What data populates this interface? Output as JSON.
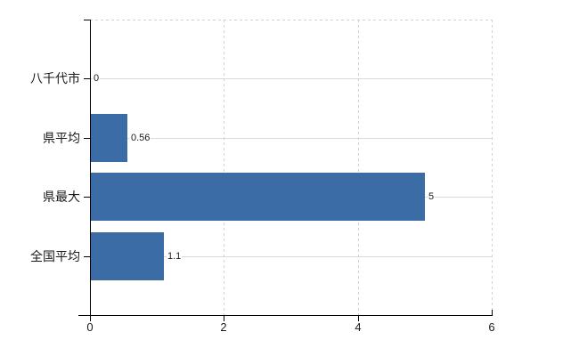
{
  "chart_data": {
    "type": "bar",
    "orientation": "horizontal",
    "title": "",
    "xlabel": "",
    "ylabel": "",
    "categories": [
      "八千代市",
      "県平均",
      "県最大",
      "全国平均"
    ],
    "values": [
      0,
      0.56,
      5,
      1.1
    ],
    "value_labels": [
      "0",
      "0.56",
      "5",
      "1.1"
    ],
    "x_ticks": [
      0,
      2,
      4,
      6
    ],
    "x_tick_labels": [
      "0",
      "2",
      "4",
      "6"
    ],
    "xlim": [
      0,
      6
    ],
    "legend": "none",
    "grid": "on",
    "colors": {
      "bar": "#3c6ca5",
      "h_gridline": "#d8ddd3",
      "v_gridline_dashed": "#d2d2d2",
      "axis": "#000000",
      "text": "#1a1a1a",
      "background": "#ffffff"
    }
  }
}
